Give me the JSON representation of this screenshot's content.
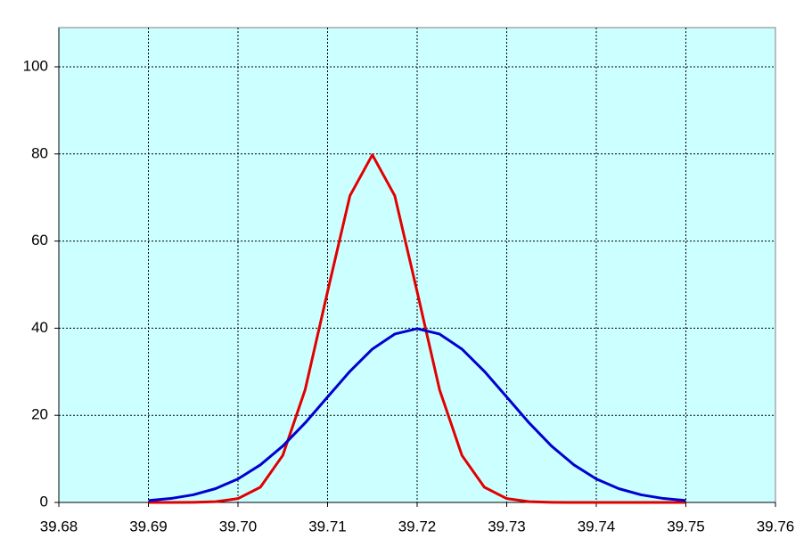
{
  "chart_data": {
    "type": "line",
    "x": [
      39.69,
      39.6925,
      39.695,
      39.6975,
      39.7,
      39.7025,
      39.705,
      39.7075,
      39.71,
      39.7125,
      39.715,
      39.7175,
      39.72,
      39.7225,
      39.725,
      39.7275,
      39.73,
      39.7325,
      39.735,
      39.7375,
      39.74,
      39.7425,
      39.745,
      39.7475,
      39.75
    ],
    "series": [
      {
        "color": "#e00000",
        "values": [
          0,
          0,
          0.03,
          0.17,
          0.89,
          3.5,
          10.8,
          25.9,
          48.39,
          70.41,
          79.79,
          70.41,
          48.39,
          25.9,
          10.8,
          3.5,
          0.89,
          0.17,
          0.03,
          0,
          0,
          0,
          0,
          0,
          0
        ]
      },
      {
        "color": "#0000d0",
        "values": [
          0.44,
          0.91,
          1.75,
          3.17,
          5.4,
          8.63,
          12.95,
          18.26,
          24.2,
          30.11,
          35.21,
          38.66,
          39.89,
          38.66,
          35.21,
          30.11,
          24.2,
          18.26,
          12.95,
          8.63,
          5.4,
          3.17,
          1.75,
          0.91,
          0.44
        ]
      }
    ],
    "xlim": [
      39.68,
      39.76
    ],
    "xticks": [
      39.68,
      39.69,
      {
        "value": 39.7,
        "label": "39.70"
      },
      39.71,
      39.72,
      39.73,
      39.74,
      39.75,
      39.76
    ],
    "ylim": [
      0,
      109
    ],
    "yticks": [
      0,
      20,
      40,
      60,
      80,
      100
    ],
    "grid": true,
    "background": "#ccffff"
  }
}
